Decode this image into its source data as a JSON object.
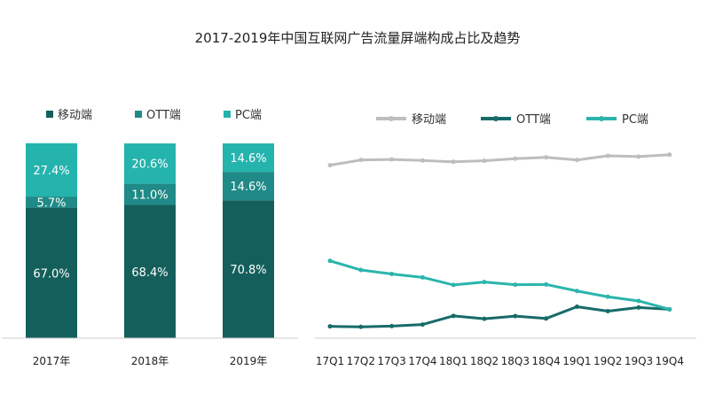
{
  "title": "2017-2019年中国互联网广告流量屏端构成占比及趋势",
  "colors": {
    "mobile": "#145f5c",
    "ott": "#1f8a87",
    "pc": "#25b3ad",
    "mobile_line": "#bdbdbd",
    "ott_line": "#176b6a",
    "pc_line": "#2bb5ad",
    "axis": "#cccccc"
  },
  "chart_data": [
    {
      "type": "bar",
      "stacked": true,
      "categories": [
        "2017年",
        "2018年",
        "2019年"
      ],
      "series": [
        {
          "name": "移动端",
          "values": [
            67.0,
            68.4,
            70.8
          ],
          "labels": [
            "67.0%",
            "68.4%",
            "70.8%"
          ]
        },
        {
          "name": "OTT端",
          "values": [
            5.7,
            11.0,
            14.6
          ],
          "labels": [
            "5.7%",
            "11.0%",
            "14.6%"
          ]
        },
        {
          "name": "PC端",
          "values": [
            27.4,
            20.6,
            14.6
          ],
          "labels": [
            "27.4%",
            "20.6%",
            "14.6%"
          ]
        }
      ],
      "ylim": [
        0,
        100
      ],
      "legend": "top"
    },
    {
      "type": "line",
      "categories": [
        "17Q1",
        "17Q2",
        "17Q3",
        "17Q4",
        "18Q1",
        "18Q2",
        "18Q3",
        "18Q4",
        "19Q1",
        "19Q2",
        "19Q3",
        "19Q4"
      ],
      "series": [
        {
          "name": "移动端",
          "values": [
            66.0,
            68.0,
            68.2,
            67.8,
            67.3,
            67.7,
            68.5,
            69.0,
            68.0,
            69.6,
            69.3,
            70.0
          ]
        },
        {
          "name": "OTT端",
          "values": [
            4.5,
            4.3,
            4.6,
            5.2,
            8.5,
            7.4,
            8.4,
            7.5,
            12.0,
            10.3,
            11.7,
            11.0
          ]
        },
        {
          "name": "PC端",
          "values": [
            29.5,
            26.0,
            24.5,
            23.2,
            20.3,
            21.4,
            20.4,
            20.5,
            18.0,
            15.8,
            14.2,
            11.0
          ]
        }
      ],
      "ylim": [
        0,
        100
      ],
      "legend": "top",
      "grid": false
    }
  ]
}
